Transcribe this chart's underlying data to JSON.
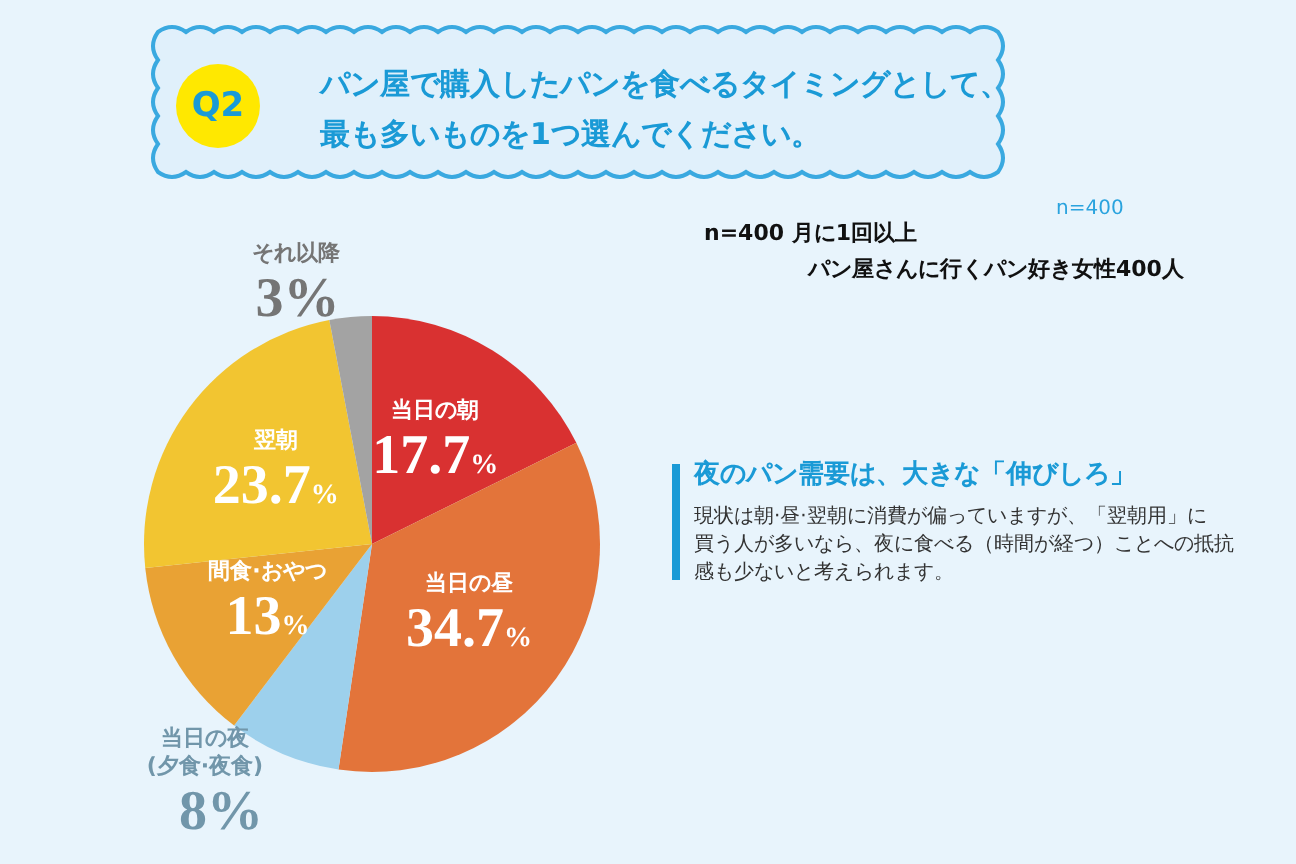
{
  "chart_data": {
    "type": "pie",
    "title": "パン屋で購入したパンを食べるタイミングとして、最も多いものを1つ選んでください。",
    "categories": [
      "当日の朝",
      "当日の昼",
      "当日の夜\n(夕食·夜食)",
      "間食·おやつ",
      "翌朝",
      "それ以降"
    ],
    "values": [
      17.7,
      34.7,
      8,
      13,
      23.7,
      3
    ],
    "colors": [
      "#d93131",
      "#e3743a",
      "#9dd0ec",
      "#e9a234",
      "#f2c531",
      "#a3a3a3"
    ],
    "value_labels": [
      "17.7%",
      "34.7%",
      "8%",
      "13%",
      "23.7%",
      "3%"
    ],
    "annotations": [
      "Q2",
      "n=400",
      "n=400 月に1回以上",
      "パン屋さんに行くパン好き女性400人",
      "夜のパン需要は、大きな「伸びしろ」",
      "現状は朝·昼·翌朝に消費が偏っていますが、「翌朝用」に",
      "買う人が多いなら、夜に食べる（時間が経つ）ことへの抵抗",
      "感も少ないと考えられます。"
    ],
    "legend": false
  }
}
